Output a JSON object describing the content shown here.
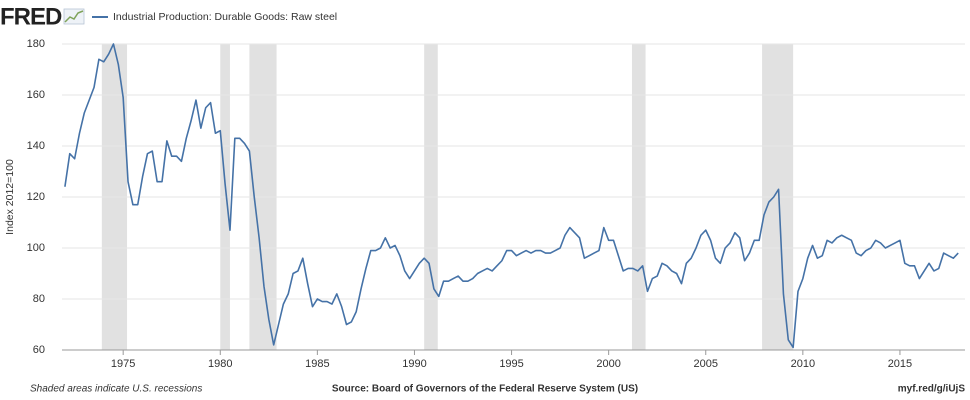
{
  "chart_data": {
    "type": "line",
    "logo": "FRED",
    "ylabel": "Index 2012=100",
    "note": "Shaded areas indicate U.S. recessions",
    "source": "Source: Board of Governors of the Federal Reserve System (US)",
    "link": "myf.red/g/iUjS",
    "xlim": [
      1971.85,
      2018.35
    ],
    "xticks": [
      1975,
      1980,
      1985,
      1990,
      1995,
      2000,
      2005,
      2010,
      2015
    ],
    "ylim": [
      60,
      180
    ],
    "yticks": [
      60,
      80,
      100,
      120,
      140,
      160,
      180
    ],
    "grid": true,
    "recessions": [
      [
        1973.9,
        1975.2
      ],
      [
        1980.0,
        1980.5
      ],
      [
        1981.5,
        1982.9
      ],
      [
        1990.5,
        1991.2
      ],
      [
        2001.2,
        2001.9
      ],
      [
        2007.9,
        2009.5
      ]
    ],
    "recession_color": "#e1e1e1",
    "x": [
      1972,
      1972.25,
      1972.5,
      1972.75,
      1973,
      1973.25,
      1973.5,
      1973.75,
      1974,
      1974.25,
      1974.5,
      1974.75,
      1975,
      1975.25,
      1975.5,
      1975.75,
      1976,
      1976.25,
      1976.5,
      1976.75,
      1977,
      1977.25,
      1977.5,
      1977.75,
      1978,
      1978.25,
      1978.5,
      1978.75,
      1979,
      1979.25,
      1979.5,
      1979.75,
      1980,
      1980.25,
      1980.5,
      1980.75,
      1981,
      1981.25,
      1981.5,
      1981.75,
      1982,
      1982.25,
      1982.5,
      1982.75,
      1983,
      1983.25,
      1983.5,
      1983.75,
      1984,
      1984.25,
      1984.5,
      1984.75,
      1985,
      1985.25,
      1985.5,
      1985.75,
      1986,
      1986.25,
      1986.5,
      1986.75,
      1987,
      1987.25,
      1987.5,
      1987.75,
      1988,
      1988.25,
      1988.5,
      1988.75,
      1989,
      1989.25,
      1989.5,
      1989.75,
      1990,
      1990.25,
      1990.5,
      1990.75,
      1991,
      1991.25,
      1991.5,
      1991.75,
      1992,
      1992.25,
      1992.5,
      1992.75,
      1993,
      1993.25,
      1993.5,
      1993.75,
      1994,
      1994.25,
      1994.5,
      1994.75,
      1995,
      1995.25,
      1995.5,
      1995.75,
      1996,
      1996.25,
      1996.5,
      1996.75,
      1997,
      1997.25,
      1997.5,
      1997.75,
      1998,
      1998.25,
      1998.5,
      1998.75,
      1999,
      1999.25,
      1999.5,
      1999.75,
      2000,
      2000.25,
      2000.5,
      2000.75,
      2001,
      2001.25,
      2001.5,
      2001.75,
      2002,
      2002.25,
      2002.5,
      2002.75,
      2003,
      2003.25,
      2003.5,
      2003.75,
      2004,
      2004.25,
      2004.5,
      2004.75,
      2005,
      2005.25,
      2005.5,
      2005.75,
      2006,
      2006.25,
      2006.5,
      2006.75,
      2007,
      2007.25,
      2007.5,
      2007.75,
      2008,
      2008.25,
      2008.5,
      2008.75,
      2009,
      2009.25,
      2009.5,
      2009.75,
      2010,
      2010.25,
      2010.5,
      2010.75,
      2011,
      2011.25,
      2011.5,
      2011.75,
      2012,
      2012.25,
      2012.5,
      2012.75,
      2013,
      2013.25,
      2013.5,
      2013.75,
      2014,
      2014.25,
      2014.5,
      2014.75,
      2015,
      2015.25,
      2015.5,
      2015.75,
      2016,
      2016.25,
      2016.5,
      2016.75,
      2017,
      2017.25,
      2017.5,
      2017.75,
      2018
    ],
    "series": [
      {
        "name": "Industrial Production: Durable Goods: Raw steel",
        "color": "#4572a7",
        "values": [
          124,
          137,
          135,
          145,
          153,
          158,
          163,
          174,
          173,
          176,
          180,
          172,
          159,
          126,
          117,
          117,
          128,
          137,
          138,
          126,
          126,
          142,
          136,
          136,
          134,
          143,
          150,
          158,
          147,
          155,
          157,
          145,
          146,
          125,
          107,
          143,
          143,
          141,
          138,
          120,
          104,
          85,
          72,
          62,
          70,
          78,
          82,
          90,
          91,
          96,
          86,
          77,
          80,
          79,
          79,
          78,
          82,
          77,
          70,
          71,
          75,
          84,
          92,
          99,
          99,
          100,
          104,
          100,
          101,
          97,
          91,
          88,
          91,
          94,
          96,
          94,
          84,
          81,
          87,
          87,
          88,
          89,
          87,
          87,
          88,
          90,
          91,
          92,
          91,
          93,
          95,
          99,
          99,
          97,
          98,
          99,
          98,
          99,
          99,
          98,
          98,
          99,
          100,
          105,
          108,
          106,
          104,
          96,
          97,
          98,
          99,
          108,
          103,
          103,
          97,
          91,
          92,
          92,
          91,
          93,
          83,
          88,
          89,
          94,
          93,
          91,
          90,
          86,
          94,
          96,
          100,
          105,
          107,
          103,
          96,
          94,
          100,
          102,
          106,
          104,
          95,
          98,
          103,
          103,
          113,
          118,
          120,
          123,
          82,
          64,
          61,
          83,
          88,
          96,
          101,
          96,
          97,
          103,
          102,
          104,
          105,
          104,
          103,
          98,
          97,
          99,
          100,
          103,
          102,
          100,
          101,
          102,
          103,
          94,
          93,
          93,
          88,
          91,
          94,
          91,
          92,
          98,
          97,
          96,
          98
        ]
      }
    ]
  }
}
